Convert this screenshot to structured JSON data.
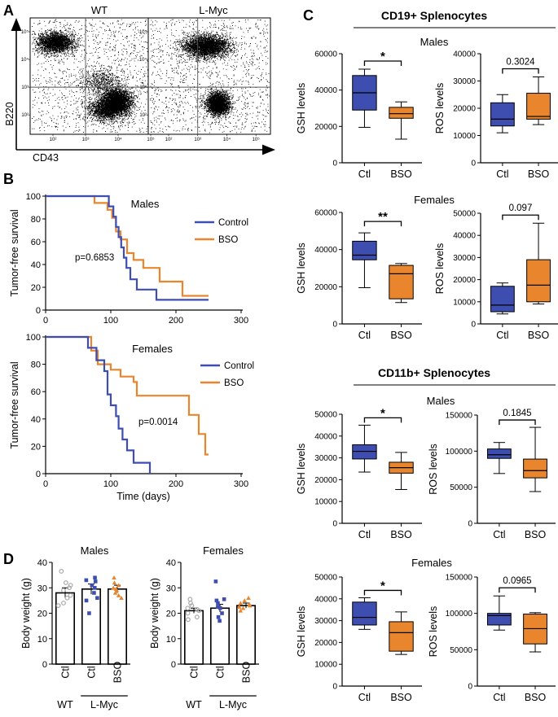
{
  "colors": {
    "control": "#3d4eb0",
    "bso": "#e9862d",
    "wt_dot": "#a9a9a9",
    "axis": "#000000"
  },
  "panels": {
    "A": "A",
    "B": "B",
    "C": "C",
    "D": "D"
  },
  "A": {
    "plots": [
      {
        "title": "WT",
        "label": "wt"
      },
      {
        "title": "L-Myc",
        "label": "lmyc"
      }
    ],
    "y_label": "B220",
    "x_label": "CD43",
    "ticks": [
      "10²",
      "10³",
      "10⁴",
      "10⁵"
    ]
  },
  "C": {
    "headers": {
      "cd19": "CD19+ Splenocytes",
      "cd11b": "CD11b+ Splenocytes"
    },
    "x_labels": [
      "Ctl",
      "BSO"
    ]
  },
  "D": {
    "x_labels": [
      "Ctl",
      "Ctl",
      "BSO"
    ],
    "groups": [
      "WT",
      "L-Myc"
    ]
  },
  "chart_data": [
    {
      "id": "A-WT",
      "type": "scatter",
      "title": "WT",
      "xlabel": "CD43",
      "ylabel": "B220",
      "x_ticks": [
        "10²",
        "10³",
        "10⁴",
        "10⁵"
      ],
      "y_ticks": [
        "10²",
        "10³",
        "10⁴",
        "10⁵"
      ],
      "x_scale": "log",
      "y_scale": "log",
      "populations": [
        {
          "x_center": 120,
          "y_center": 40000
        },
        {
          "x_center": 3000,
          "y_center": 1500
        },
        {
          "x_center": 9000,
          "y_center": 300
        },
        {
          "x_center": 4000,
          "y_center": 150
        }
      ]
    },
    {
      "id": "A-LMyc",
      "type": "scatter",
      "title": "L-Myc",
      "xlabel": "CD43",
      "ylabel": "B220",
      "x_ticks": [
        "10²",
        "10³",
        "10⁴",
        "10⁵"
      ],
      "y_ticks": [
        "10²",
        "10³",
        "10⁴",
        "10⁵"
      ],
      "x_scale": "log",
      "y_scale": "log",
      "populations": [
        {
          "x_center": 2000,
          "y_center": 30000
        },
        {
          "x_center": 5000,
          "y_center": 250
        }
      ]
    },
    {
      "id": "B-Males",
      "type": "line",
      "step": true,
      "title": "Males",
      "ylabel": "Tumor-free survival",
      "xlabel": "",
      "xlim": [
        0,
        300
      ],
      "ylim": [
        0,
        100
      ],
      "x_ticks": [
        0,
        100,
        200,
        300
      ],
      "y_ticks": [
        0,
        20,
        40,
        60,
        80,
        100
      ],
      "annotation": "p=0.6853",
      "series": [
        {
          "name": "Control",
          "color": "#3d4eb0",
          "x": [
            0,
            97,
            104,
            108,
            112,
            116,
            120,
            124,
            130,
            140,
            170,
            190,
            250
          ],
          "y": [
            100,
            91,
            82,
            73,
            64,
            55,
            46,
            37,
            27,
            18,
            9,
            9,
            9
          ]
        },
        {
          "name": "BSO",
          "color": "#e9862d",
          "x": [
            0,
            75,
            95,
            102,
            108,
            115,
            125,
            135,
            150,
            175,
            210,
            250
          ],
          "y": [
            100,
            94,
            88,
            81,
            69,
            62,
            50,
            44,
            37,
            25,
            12.5,
            12.5
          ]
        }
      ]
    },
    {
      "id": "B-Females",
      "type": "line",
      "step": true,
      "title": "Females",
      "ylabel": "Tumor-free survival",
      "xlabel": "Time (days)",
      "xlim": [
        0,
        300
      ],
      "ylim": [
        0,
        100
      ],
      "x_ticks": [
        0,
        100,
        200,
        300
      ],
      "y_ticks": [
        0,
        20,
        40,
        60,
        80,
        100
      ],
      "annotation": "p=0.0014",
      "series": [
        {
          "name": "Control",
          "color": "#3d4eb0",
          "x": [
            0,
            65,
            78,
            90,
            95,
            100,
            108,
            112,
            118,
            125,
            135,
            160
          ],
          "y": [
            100,
            92,
            83,
            75,
            58,
            50,
            42,
            33,
            25,
            17,
            8,
            0
          ]
        },
        {
          "name": "BSO",
          "color": "#e9862d",
          "x": [
            0,
            70,
            80,
            100,
            115,
            135,
            140,
            220,
            235,
            245,
            250
          ],
          "y": [
            100,
            90,
            80,
            76,
            71,
            67,
            57,
            43,
            29,
            14,
            14
          ]
        }
      ]
    },
    {
      "id": "C-CD19-Males-GSH",
      "type": "box",
      "group_title": "Males",
      "ylabel": "GSH levels",
      "categories": [
        "Ctl",
        "BSO"
      ],
      "ylim": [
        0,
        60000
      ],
      "y_ticks": [
        0,
        20000,
        40000,
        60000
      ],
      "boxes": [
        {
          "min": 19500,
          "q1": 29000,
          "median": 38500,
          "q3": 48000,
          "max": 51500
        },
        {
          "min": 13000,
          "q1": 24500,
          "median": 27000,
          "q3": 30500,
          "max": 33500
        }
      ],
      "annotation": "*"
    },
    {
      "id": "C-CD19-Males-ROS",
      "type": "box",
      "ylabel": "ROS levels",
      "categories": [
        "Ctl",
        "BSO"
      ],
      "ylim": [
        0,
        40000
      ],
      "y_ticks": [
        0,
        10000,
        20000,
        30000,
        40000
      ],
      "boxes": [
        {
          "min": 11000,
          "q1": 13500,
          "median": 16000,
          "q3": 22000,
          "max": 25000
        },
        {
          "min": 14000,
          "q1": 16000,
          "median": 17000,
          "q3": 25500,
          "max": 31500
        }
      ],
      "annotation": "0.3024"
    },
    {
      "id": "C-CD19-Females-GSH",
      "type": "box",
      "group_title": "Females",
      "ylabel": "GSH levels",
      "categories": [
        "Ctl",
        "BSO"
      ],
      "ylim": [
        0,
        60000
      ],
      "y_ticks": [
        0,
        20000,
        40000,
        60000
      ],
      "boxes": [
        {
          "min": 19500,
          "q1": 34500,
          "median": 37000,
          "q3": 44500,
          "max": 49000
        },
        {
          "min": 11500,
          "q1": 13500,
          "median": 27000,
          "q3": 31500,
          "max": 32500
        }
      ],
      "annotation": "**"
    },
    {
      "id": "C-CD19-Females-ROS",
      "type": "box",
      "ylabel": "ROS levels",
      "categories": [
        "Ctl",
        "BSO"
      ],
      "ylim": [
        0,
        50000
      ],
      "y_ticks": [
        0,
        10000,
        20000,
        30000,
        40000,
        50000
      ],
      "boxes": [
        {
          "min": 4500,
          "q1": 5500,
          "median": 8500,
          "q3": 17000,
          "max": 18500
        },
        {
          "min": 9000,
          "q1": 10000,
          "median": 17500,
          "q3": 29000,
          "max": 45500
        }
      ],
      "annotation": "0.097"
    },
    {
      "id": "C-CD11b-Males-GSH",
      "type": "box",
      "group_title": "Males",
      "ylabel": "GSH levels",
      "categories": [
        "Ctl",
        "BSO"
      ],
      "ylim": [
        0,
        50000
      ],
      "y_ticks": [
        0,
        10000,
        20000,
        30000,
        40000,
        50000
      ],
      "boxes": [
        {
          "min": 23500,
          "q1": 29500,
          "median": 33000,
          "q3": 36000,
          "max": 45000
        },
        {
          "min": 15500,
          "q1": 23000,
          "median": 25500,
          "q3": 28000,
          "max": 32500
        }
      ],
      "annotation": "*"
    },
    {
      "id": "C-CD11b-Males-ROS",
      "type": "box",
      "ylabel": "ROS levels",
      "categories": [
        "Ctl",
        "BSO"
      ],
      "ylim": [
        0,
        150000
      ],
      "y_ticks": [
        0,
        50000,
        100000,
        150000
      ],
      "boxes": [
        {
          "min": 69000,
          "q1": 90000,
          "median": 95000,
          "q3": 103000,
          "max": 112000
        },
        {
          "min": 44000,
          "q1": 63000,
          "median": 73000,
          "q3": 89000,
          "max": 133000
        }
      ],
      "annotation": "0.1845"
    },
    {
      "id": "C-CD11b-Females-GSH",
      "type": "box",
      "group_title": "Females",
      "ylabel": "GSH levels",
      "categories": [
        "Ctl",
        "BSO"
      ],
      "ylim": [
        0,
        50000
      ],
      "y_ticks": [
        0,
        10000,
        20000,
        30000,
        40000,
        50000
      ],
      "boxes": [
        {
          "min": 26000,
          "q1": 28000,
          "median": 31500,
          "q3": 38500,
          "max": 40500
        },
        {
          "min": 14500,
          "q1": 16000,
          "median": 24500,
          "q3": 29500,
          "max": 34000
        }
      ],
      "annotation": "*"
    },
    {
      "id": "C-CD11b-Females-ROS",
      "type": "box",
      "ylabel": "ROS levels",
      "categories": [
        "Ctl",
        "BSO"
      ],
      "ylim": [
        0,
        150000
      ],
      "y_ticks": [
        0,
        50000,
        100000,
        150000
      ],
      "boxes": [
        {
          "min": 77000,
          "q1": 84000,
          "median": 97000,
          "q3": 100000,
          "max": 124000
        },
        {
          "min": 47000,
          "q1": 58000,
          "median": 79000,
          "q3": 99000,
          "max": 101000
        }
      ],
      "annotation": "0.0965"
    },
    {
      "id": "D-Males",
      "type": "bar",
      "title": "Males",
      "ylabel": "Body weight (g)",
      "categories": [
        "Ctl",
        "Ctl",
        "BSO"
      ],
      "groups": [
        "WT",
        "L-Myc"
      ],
      "ylim": [
        0,
        40
      ],
      "y_ticks": [
        0,
        10,
        20,
        30,
        40
      ],
      "values": [
        28,
        29.5,
        29.5
      ],
      "errors": [
        2,
        2,
        1.5
      ],
      "points": [
        [
          36.5,
          32,
          31,
          30,
          29,
          27,
          26,
          24,
          23
        ],
        [
          34,
          33,
          32.5,
          31,
          30,
          28,
          26,
          25,
          20
        ],
        [
          34,
          32,
          31,
          30,
          29.5,
          29,
          28,
          27,
          26
        ]
      ]
    },
    {
      "id": "D-Females",
      "type": "bar",
      "title": "Females",
      "ylabel": "Body weight (g)",
      "categories": [
        "Ctl",
        "Ctl",
        "BSO"
      ],
      "groups": [
        "WT",
        "L-Myc"
      ],
      "ylim": [
        0,
        40
      ],
      "y_ticks": [
        0,
        10,
        20,
        30,
        40
      ],
      "values": [
        21,
        22,
        23
      ],
      "errors": [
        1,
        1.5,
        1
      ],
      "points": [
        [
          25.5,
          24,
          23,
          22,
          21.5,
          21,
          20,
          18.5,
          17.5
        ],
        [
          32.5,
          25.5,
          25,
          24,
          22.5,
          22,
          20,
          18.5,
          17
        ],
        [
          26,
          25,
          24,
          23.5,
          23,
          22.5,
          22,
          21
        ]
      ]
    }
  ]
}
